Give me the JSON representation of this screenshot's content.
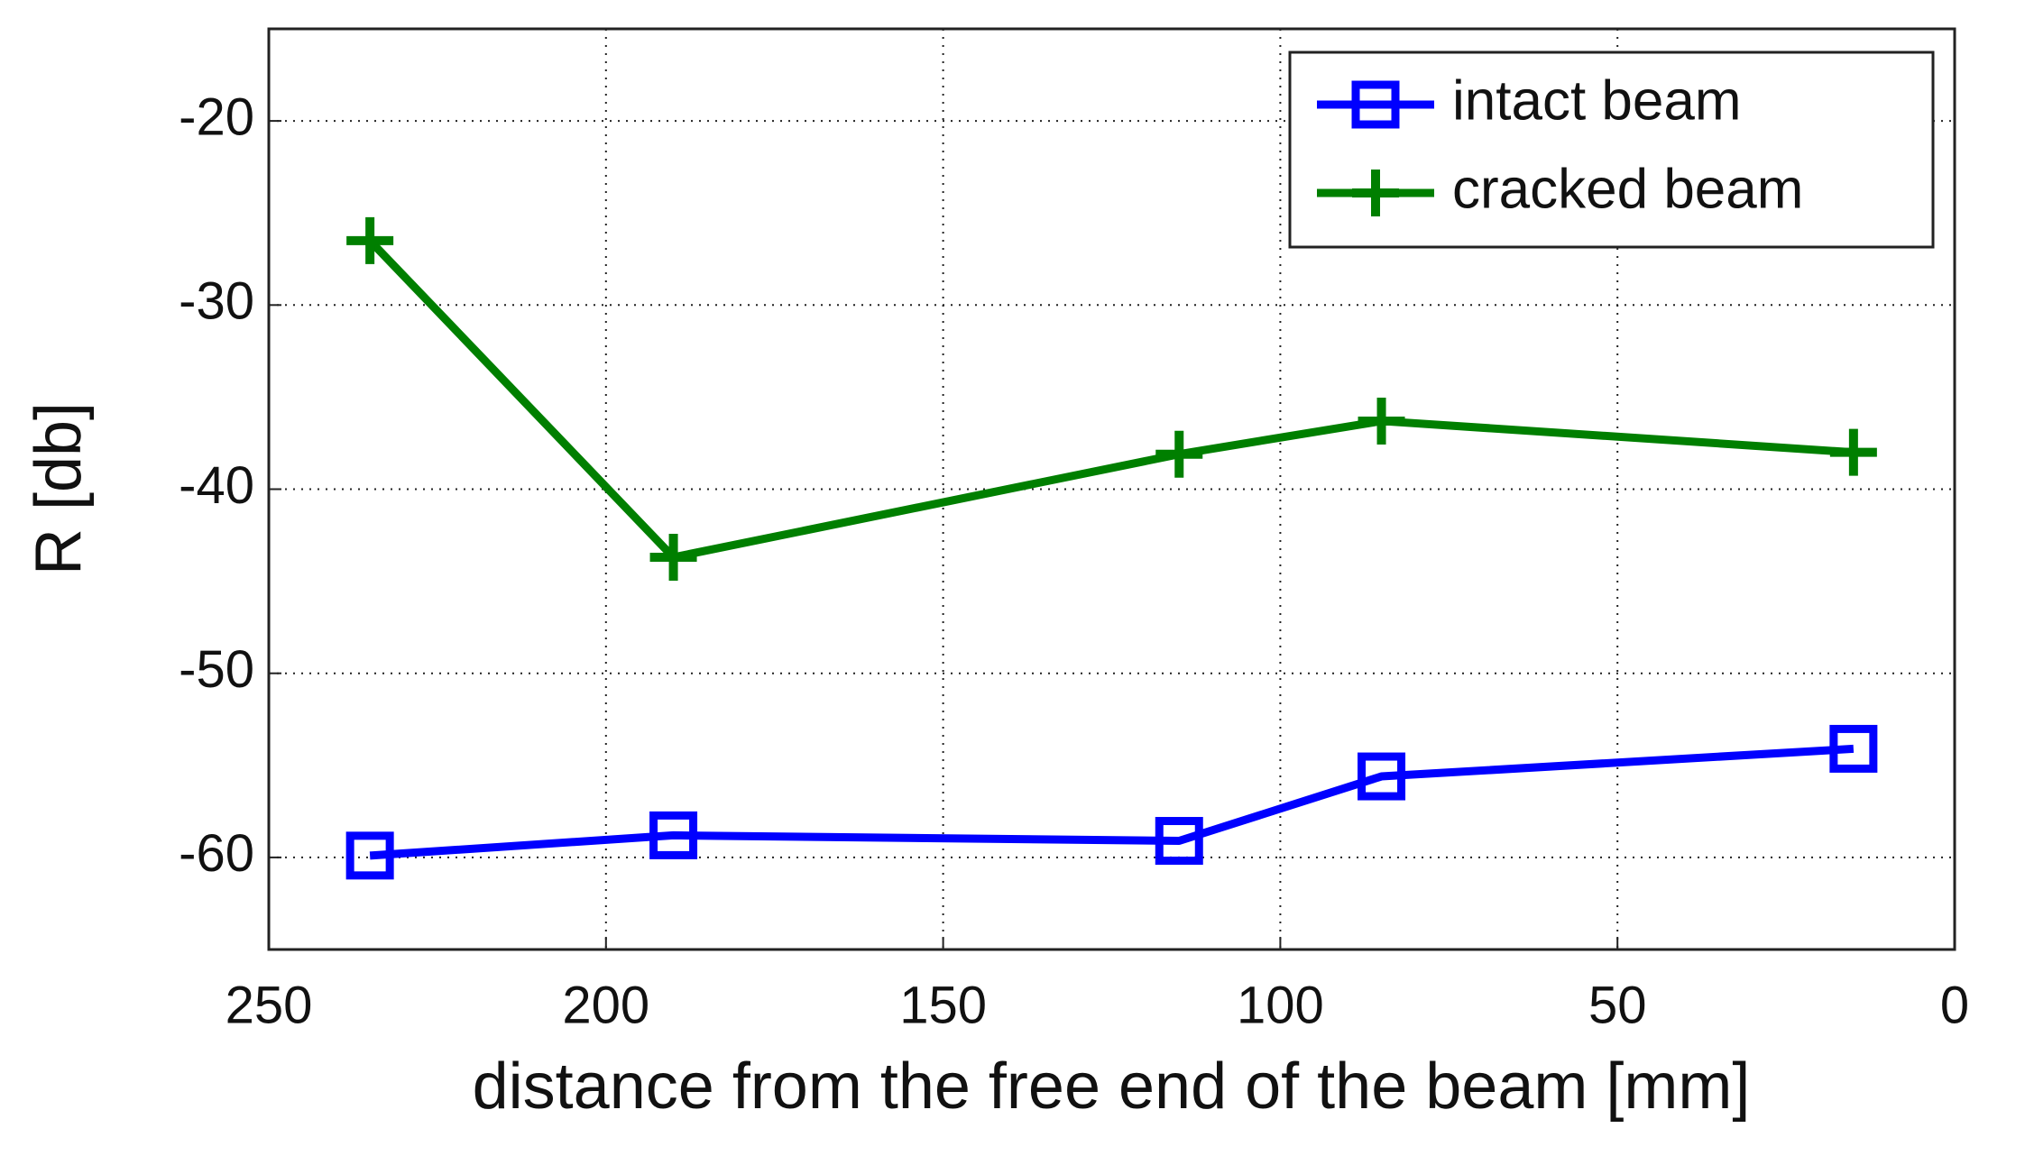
{
  "chart_data": {
    "type": "line",
    "x_label": "distance from the free end of the beam [mm]",
    "y_label": "R [db]",
    "xlim": [
      250,
      0
    ],
    "xticks": [
      250,
      200,
      150,
      100,
      50,
      0
    ],
    "ylim": [
      -65,
      -15
    ],
    "yticks": [
      -20,
      -30,
      -40,
      -50,
      -60
    ],
    "grid": true,
    "legend": "upper right",
    "x": [
      235,
      190,
      115,
      85,
      15
    ],
    "series": [
      {
        "name": "intact beam",
        "color": "#0000ff",
        "marker": "square",
        "values": [
          -59.9,
          -58.8,
          -59.1,
          -55.6,
          -54.1
        ]
      },
      {
        "name": "cracked beam",
        "color": "#007f00",
        "marker": "plus",
        "values": [
          -26.5,
          -43.7,
          -38.1,
          -36.3,
          -38.0
        ]
      }
    ]
  }
}
